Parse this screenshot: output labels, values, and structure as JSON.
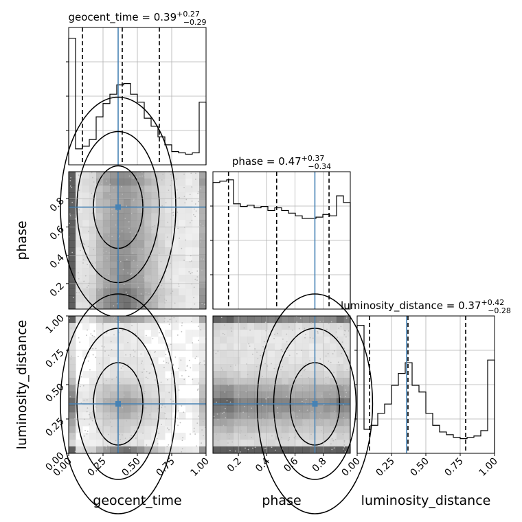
{
  "chart_data": {
    "type": "corner",
    "parameters": [
      "geocent_time",
      "phase",
      "luminosity_distance"
    ],
    "truth": {
      "geocent_time": 0.36,
      "phase": 0.74,
      "luminosity_distance": 0.36
    },
    "axes": {
      "geocent_time": {
        "range": [
          0.0,
          1.0
        ],
        "ticks": [
          0.0,
          0.25,
          0.5,
          0.75,
          1.0
        ],
        "tick_labels": [
          "0.00",
          "0.25",
          "0.50",
          "0.75",
          "1.00"
        ]
      },
      "phase": {
        "range": [
          0.02,
          0.99
        ],
        "ticks": [
          0.2,
          0.4,
          0.6,
          0.8
        ],
        "tick_labels": [
          "0.2",
          "0.4",
          "0.6",
          "0.8"
        ]
      },
      "luminosity_distance": {
        "range": [
          0.0,
          1.0
        ],
        "ticks": [
          0.0,
          0.25,
          0.5,
          0.75,
          1.0
        ],
        "tick_labels": [
          "0.00",
          "0.25",
          "0.50",
          "0.75",
          "1.00"
        ]
      }
    },
    "marginals": [
      {
        "param": "geocent_time",
        "title": "geocent_time = 0.39",
        "sup": "+0.27",
        "sub": "−0.29",
        "quantiles": [
          0.1,
          0.39,
          0.66
        ],
        "bins": [
          0.0,
          0.05,
          0.1,
          0.15,
          0.2,
          0.25,
          0.3,
          0.35,
          0.4,
          0.45,
          0.5,
          0.55,
          0.6,
          0.65,
          0.7,
          0.75,
          0.8,
          0.85,
          0.9,
          0.95,
          1.0
        ],
        "counts": [
          0.95,
          0.12,
          0.14,
          0.19,
          0.36,
          0.46,
          0.53,
          0.6,
          0.61,
          0.53,
          0.47,
          0.35,
          0.29,
          0.21,
          0.15,
          0.1,
          0.09,
          0.08,
          0.09,
          0.47
        ]
      },
      {
        "param": "phase",
        "title": "phase = 0.47",
        "sup": "+0.37",
        "sub": "−0.34",
        "quantiles": [
          0.13,
          0.47,
          0.84
        ],
        "bins": [
          0.02,
          0.0685,
          0.117,
          0.1655,
          0.214,
          0.2625,
          0.311,
          0.3595,
          0.408,
          0.4565,
          0.505,
          0.5535,
          0.602,
          0.6505,
          0.699,
          0.7475,
          0.796,
          0.8445,
          0.893,
          0.9415,
          0.99
        ],
        "counts": [
          0.95,
          0.96,
          0.97,
          0.79,
          0.77,
          0.78,
          0.76,
          0.77,
          0.74,
          0.76,
          0.74,
          0.72,
          0.7,
          0.68,
          0.68,
          0.69,
          0.71,
          0.7,
          0.85,
          0.8
        ]
      },
      {
        "param": "luminosity_distance",
        "title": "luminosity_distance = 0.37",
        "sup": "+0.42",
        "sub": "−0.28",
        "quantiles": [
          0.09,
          0.37,
          0.79
        ],
        "bins": [
          0.0,
          0.05,
          0.1,
          0.15,
          0.2,
          0.25,
          0.3,
          0.35,
          0.4,
          0.45,
          0.5,
          0.55,
          0.6,
          0.65,
          0.7,
          0.75,
          0.8,
          0.85,
          0.9,
          0.95,
          1.0
        ],
        "counts": [
          0.96,
          0.18,
          0.21,
          0.3,
          0.37,
          0.51,
          0.6,
          0.68,
          0.51,
          0.46,
          0.3,
          0.21,
          0.16,
          0.14,
          0.12,
          0.11,
          0.12,
          0.13,
          0.17,
          0.7
        ]
      }
    ],
    "axis_labels": {
      "geocent_time": "geocent_time",
      "phase": "phase",
      "luminosity_distance": "luminosity_distance"
    },
    "grid": true,
    "colors": {
      "truth": "#4682b4",
      "hist": "#000000",
      "quantile": "#000000",
      "points": "#bdbdbd"
    }
  }
}
